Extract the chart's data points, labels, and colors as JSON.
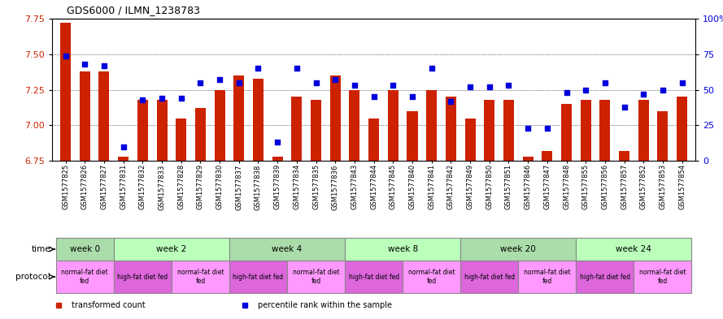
{
  "title": "GDS6000 / ILMN_1238783",
  "samples": [
    "GSM1577825",
    "GSM1577826",
    "GSM1577827",
    "GSM1577831",
    "GSM1577832",
    "GSM1577833",
    "GSM1577828",
    "GSM1577829",
    "GSM1577830",
    "GSM1577837",
    "GSM1577838",
    "GSM1577839",
    "GSM1577834",
    "GSM1577835",
    "GSM1577836",
    "GSM1577843",
    "GSM1577844",
    "GSM1577845",
    "GSM1577840",
    "GSM1577841",
    "GSM1577842",
    "GSM1577849",
    "GSM1577850",
    "GSM1577851",
    "GSM1577846",
    "GSM1577847",
    "GSM1577848",
    "GSM1577855",
    "GSM1577856",
    "GSM1577857",
    "GSM1577852",
    "GSM1577853",
    "GSM1577854"
  ],
  "transformed_count": [
    7.72,
    7.38,
    7.38,
    6.78,
    7.18,
    7.18,
    7.05,
    7.12,
    7.25,
    7.35,
    7.33,
    6.78,
    7.2,
    7.18,
    7.35,
    7.25,
    7.05,
    7.25,
    7.1,
    7.25,
    7.2,
    7.05,
    7.18,
    7.18,
    6.78,
    6.82,
    7.15,
    7.18,
    7.18,
    6.82,
    7.18,
    7.1,
    7.2
  ],
  "percentile_rank": [
    74,
    68,
    67,
    10,
    43,
    44,
    44,
    55,
    57,
    55,
    65,
    13,
    65,
    55,
    57,
    53,
    45,
    53,
    45,
    65,
    42,
    52,
    52,
    53,
    23,
    23,
    48,
    50,
    55,
    38,
    47,
    50,
    55
  ],
  "ymin": 6.75,
  "ymax": 7.75,
  "yticks_left": [
    6.75,
    7.0,
    7.25,
    7.5,
    7.75
  ],
  "yticks_right": [
    0,
    25,
    50,
    75,
    100
  ],
  "ytick_labels_right": [
    "0",
    "25",
    "50",
    "75",
    "100%"
  ],
  "grid_lines": [
    7.0,
    7.25,
    7.5
  ],
  "bar_color": "#cc2200",
  "dot_color": "#0000dd",
  "bg_color": "#ffffff",
  "time_colors": [
    "#aaddaa",
    "#bbffbb"
  ],
  "time_groups": [
    {
      "label": "week 0",
      "start": 0,
      "end": 3,
      "color": "#aaddaa"
    },
    {
      "label": "week 2",
      "start": 3,
      "end": 9,
      "color": "#bbffbb"
    },
    {
      "label": "week 4",
      "start": 9,
      "end": 15,
      "color": "#aaddaa"
    },
    {
      "label": "week 8",
      "start": 15,
      "end": 21,
      "color": "#bbffbb"
    },
    {
      "label": "week 20",
      "start": 21,
      "end": 27,
      "color": "#aaddaa"
    },
    {
      "label": "week 24",
      "start": 27,
      "end": 33,
      "color": "#bbffbb"
    }
  ],
  "protocol_groups": [
    {
      "label": "normal-fat diet\nfed",
      "start": 0,
      "end": 3,
      "color": "#ff99ff"
    },
    {
      "label": "high-fat diet fed",
      "start": 3,
      "end": 6,
      "color": "#dd66dd"
    },
    {
      "label": "normal-fat diet\nfed",
      "start": 6,
      "end": 9,
      "color": "#ff99ff"
    },
    {
      "label": "high-fat diet fed",
      "start": 9,
      "end": 12,
      "color": "#dd66dd"
    },
    {
      "label": "normal-fat diet\nfed",
      "start": 12,
      "end": 15,
      "color": "#ff99ff"
    },
    {
      "label": "high-fat diet fed",
      "start": 15,
      "end": 18,
      "color": "#dd66dd"
    },
    {
      "label": "normal-fat diet\nfed",
      "start": 18,
      "end": 21,
      "color": "#ff99ff"
    },
    {
      "label": "high-fat diet fed",
      "start": 21,
      "end": 24,
      "color": "#dd66dd"
    },
    {
      "label": "normal-fat diet\nfed",
      "start": 24,
      "end": 27,
      "color": "#ff99ff"
    },
    {
      "label": "high-fat diet fed",
      "start": 27,
      "end": 30,
      "color": "#dd66dd"
    },
    {
      "label": "normal-fat diet\nfed",
      "start": 30,
      "end": 33,
      "color": "#ff99ff"
    }
  ],
  "legend_items": [
    {
      "label": "transformed count",
      "color": "#cc2200"
    },
    {
      "label": "percentile rank within the sample",
      "color": "#0000dd"
    }
  ],
  "label_time": "time",
  "label_protocol": "protocol"
}
